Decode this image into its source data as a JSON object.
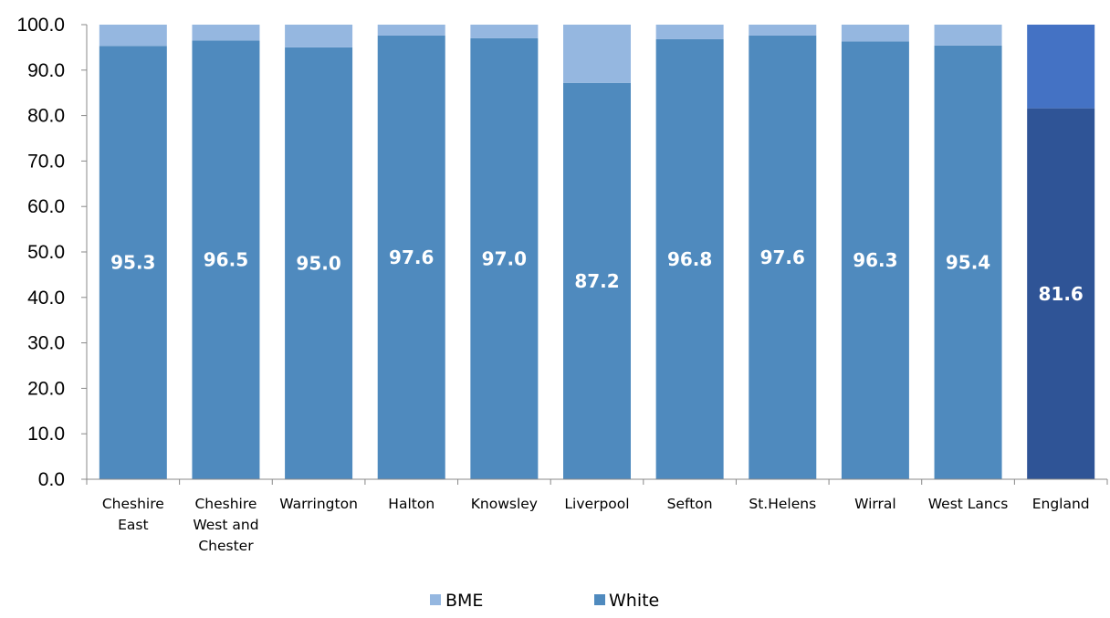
{
  "chart_data": {
    "type": "bar",
    "stacked": true,
    "title": "",
    "xlabel": "",
    "ylabel": "",
    "ylim": [
      0,
      100
    ],
    "yticks": [
      "0.0",
      "10.0",
      "20.0",
      "30.0",
      "40.0",
      "50.0",
      "60.0",
      "70.0",
      "80.0",
      "90.0",
      "100.0"
    ],
    "categories": [
      [
        "Cheshire",
        "East"
      ],
      [
        "Cheshire",
        "West and",
        "Chester"
      ],
      [
        "Warrington"
      ],
      [
        "Halton"
      ],
      [
        "Knowsley"
      ],
      [
        "Liverpool"
      ],
      [
        "Sefton"
      ],
      [
        "St.Helens"
      ],
      [
        "Wirral"
      ],
      [
        "West Lancs"
      ],
      [
        "England"
      ]
    ],
    "series": [
      {
        "name": "White",
        "values": [
          95.3,
          96.5,
          95.0,
          97.6,
          97.0,
          87.2,
          96.8,
          97.6,
          96.3,
          95.4,
          81.6
        ],
        "data_labels": [
          "95.3",
          "96.5",
          "95.0",
          "97.6",
          "97.0",
          "87.2",
          "96.8",
          "97.6",
          "96.3",
          "95.4",
          "81.6"
        ]
      },
      {
        "name": "BME",
        "values": [
          4.7,
          3.5,
          5.0,
          2.4,
          3.0,
          12.8,
          3.2,
          2.4,
          3.7,
          4.6,
          18.4
        ]
      }
    ],
    "colors": {
      "white": "#4f8abe",
      "bme": "#95b7e0",
      "england_white": "#2f5496",
      "england_bme": "#4472c4",
      "axis": "#888888"
    },
    "highlighted_category_index": 10,
    "legend": {
      "position": "bottom",
      "items": [
        {
          "label": "BME",
          "series": "BME"
        },
        {
          "label": "White",
          "series": "White"
        }
      ]
    },
    "grid": false
  }
}
